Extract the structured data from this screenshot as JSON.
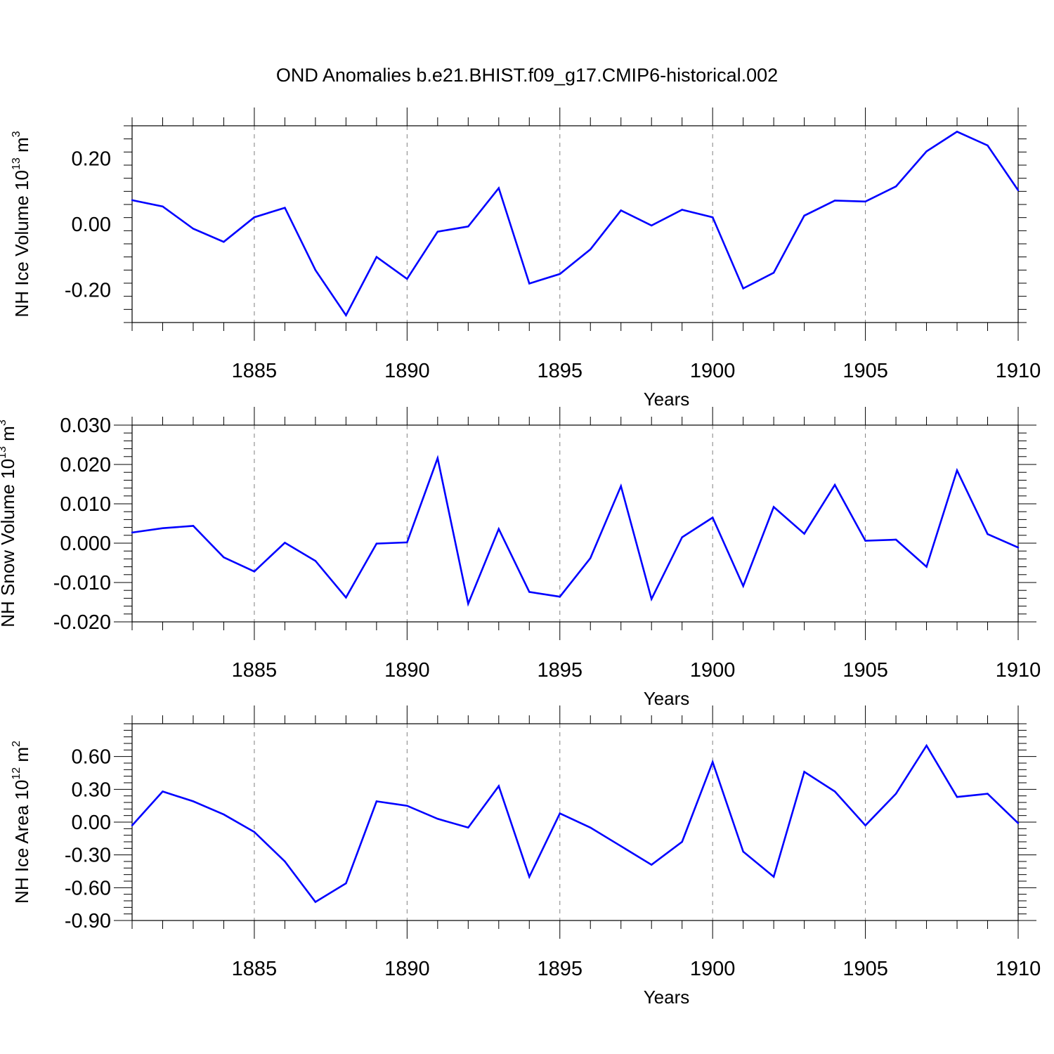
{
  "title": "OND Anomalies b.e21.BHIST.f09_g17.CMIP6-historical.002",
  "line_color": "#0000ff",
  "chart_data": [
    {
      "type": "line",
      "title": "OND Anomalies b.e21.BHIST.f09_g17.CMIP6-historical.002",
      "xlabel": "Years",
      "ylabel": {
        "text": "NH Ice Volume 10",
        "sup": "13",
        "unit": " m",
        "unit_sup": "3"
      },
      "xlim": [
        1881,
        1910
      ],
      "ylim": [
        -0.3,
        0.3
      ],
      "xticks": [
        1885,
        1890,
        1895,
        1900,
        1905,
        1910
      ],
      "yticks": [
        0.2,
        0.0,
        -0.2
      ],
      "ytick_labels": [
        "0.20",
        "0.00",
        "-0.20"
      ],
      "x": [
        1881,
        1882,
        1883,
        1884,
        1885,
        1886,
        1887,
        1888,
        1889,
        1890,
        1891,
        1892,
        1893,
        1894,
        1895,
        1896,
        1897,
        1898,
        1899,
        1900,
        1901,
        1902,
        1903,
        1904,
        1905,
        1906,
        1907,
        1908,
        1909,
        1910
      ],
      "values": [
        0.073,
        0.054,
        -0.014,
        -0.054,
        0.021,
        0.05,
        -0.14,
        -0.278,
        -0.1,
        -0.167,
        -0.023,
        -0.007,
        0.11,
        -0.181,
        -0.152,
        -0.077,
        0.042,
        -0.004,
        0.044,
        0.021,
        -0.196,
        -0.148,
        0.026,
        0.072,
        0.069,
        0.115,
        0.222,
        0.282,
        0.24,
        0.103
      ],
      "grid": "vertical dashed"
    },
    {
      "type": "line",
      "xlabel": "Years",
      "ylabel": {
        "text": "NH Snow Volume 10",
        "sup": "13",
        "unit": " m",
        "unit_sup": "3"
      },
      "xlim": [
        1881,
        1910
      ],
      "ylim": [
        -0.02,
        0.03
      ],
      "xticks": [
        1885,
        1890,
        1895,
        1900,
        1905,
        1910
      ],
      "yticks": [
        0.03,
        0.02,
        0.01,
        0.0,
        -0.01,
        -0.02
      ],
      "ytick_labels": [
        "0.030",
        "0.020",
        "0.010",
        "0.000",
        "-0.010",
        "-0.020"
      ],
      "x": [
        1881,
        1882,
        1883,
        1884,
        1885,
        1886,
        1887,
        1888,
        1889,
        1890,
        1891,
        1892,
        1893,
        1894,
        1895,
        1896,
        1897,
        1898,
        1899,
        1900,
        1901,
        1902,
        1903,
        1904,
        1905,
        1906,
        1907,
        1908,
        1909,
        1910
      ],
      "values": [
        0.0027,
        0.0038,
        0.0044,
        -0.0036,
        -0.0072,
        0.0001,
        -0.0045,
        -0.0138,
        -0.0001,
        0.0002,
        0.0216,
        -0.0154,
        0.0036,
        -0.0124,
        -0.0136,
        -0.0038,
        0.0145,
        -0.0142,
        0.0015,
        0.0065,
        -0.0109,
        0.0092,
        0.0024,
        0.0148,
        0.0006,
        0.0009,
        -0.006,
        0.0185,
        0.0023,
        -0.0011
      ],
      "grid": "vertical dashed"
    },
    {
      "type": "line",
      "xlabel": "Years",
      "ylabel": {
        "text": "NH Ice Area 10",
        "sup": "12",
        "unit": " m",
        "unit_sup": "2"
      },
      "xlim": [
        1881,
        1910
      ],
      "ylim": [
        -0.9,
        0.9
      ],
      "xticks": [
        1885,
        1890,
        1895,
        1900,
        1905,
        1910
      ],
      "yticks": [
        0.6,
        0.3,
        0.0,
        -0.3,
        -0.6,
        -0.9
      ],
      "ytick_labels": [
        "0.60",
        "0.30",
        "0.00",
        "-0.30",
        "-0.60",
        "-0.90"
      ],
      "x": [
        1881,
        1882,
        1883,
        1884,
        1885,
        1886,
        1887,
        1888,
        1889,
        1890,
        1891,
        1892,
        1893,
        1894,
        1895,
        1896,
        1897,
        1898,
        1899,
        1900,
        1901,
        1902,
        1903,
        1904,
        1905,
        1906,
        1907,
        1908,
        1909,
        1910
      ],
      "values": [
        -0.03,
        0.28,
        0.19,
        0.07,
        -0.09,
        -0.36,
        -0.73,
        -0.56,
        0.19,
        0.15,
        0.03,
        -0.05,
        0.33,
        -0.5,
        0.08,
        -0.05,
        -0.22,
        -0.39,
        -0.18,
        0.55,
        -0.27,
        -0.5,
        0.46,
        0.28,
        -0.03,
        0.26,
        0.7,
        0.23,
        0.26,
        -0.01
      ],
      "grid": "vertical dashed"
    }
  ]
}
